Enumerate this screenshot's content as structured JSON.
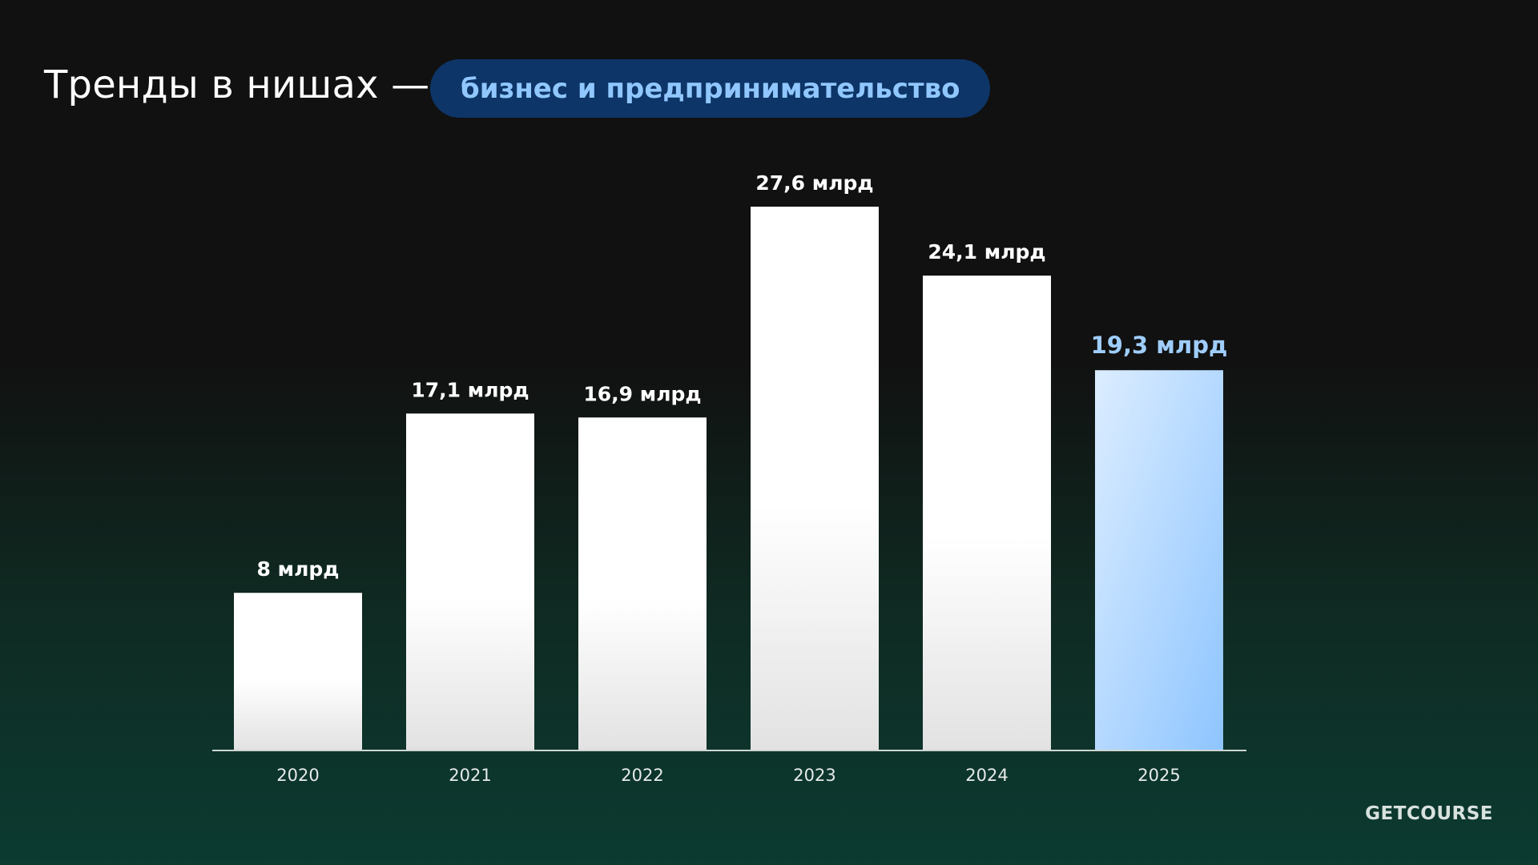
{
  "header": {
    "title": "Тренды в нишах —",
    "tag": "бизнес и предпринимательство"
  },
  "chart_data": {
    "type": "bar",
    "categories": [
      "2020",
      "2021",
      "2022",
      "2023",
      "2024",
      "2025"
    ],
    "values": [
      8,
      17.1,
      16.9,
      27.6,
      24.1,
      19.3
    ],
    "value_labels": [
      "8 млрд",
      "17,1 млрд",
      "16,9 млрд",
      "27,6 млрд",
      "24,1 млрд",
      "19,3 млрд"
    ],
    "highlight_index": 5,
    "title": "",
    "xlabel": "",
    "ylabel": "",
    "colors": {
      "bar": "#ffffff",
      "highlight": "#9ccbff",
      "label": "#ffffff",
      "highlight_label": "#9fcdfc",
      "axis": "#cfd6d3"
    }
  },
  "brand": {
    "logo_text": "GETCOURSE"
  }
}
